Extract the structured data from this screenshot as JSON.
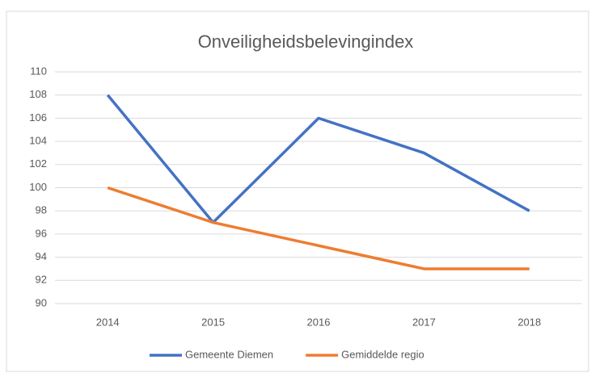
{
  "chart_data": {
    "type": "line",
    "title": "Onveiligheidsbelevingindex",
    "categories": [
      "2014",
      "2015",
      "2016",
      "2017",
      "2018"
    ],
    "series": [
      {
        "name": "Gemeente Diemen",
        "color": "#4472c4",
        "values": [
          108,
          97,
          106,
          103,
          98
        ]
      },
      {
        "name": "Gemiddelde regio",
        "color": "#ed7d31",
        "values": [
          100,
          97,
          95,
          93,
          93
        ]
      }
    ],
    "ylim": [
      90,
      110
    ],
    "yticks": [
      90,
      92,
      94,
      96,
      98,
      100,
      102,
      104,
      106,
      108,
      110
    ],
    "grid": true,
    "legend": "bottom"
  }
}
